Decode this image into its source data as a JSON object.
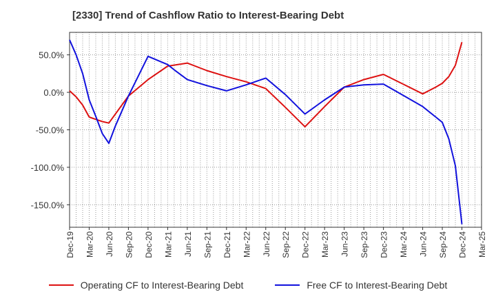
{
  "title": "[2330]  Trend of Cashflow Ratio to Interest-Bearing Debt",
  "legend": {
    "operating": "Operating CF to Interest-Bearing Debt",
    "free": "Free CF to Interest-Bearing Debt"
  },
  "colors": {
    "operating": "#dd1111",
    "free": "#1111dd",
    "grid": "#999999"
  },
  "chart_data": {
    "type": "line",
    "title": "[2330]  Trend of Cashflow Ratio to Interest-Bearing Debt",
    "xlabel": "",
    "ylabel": "",
    "ylim": [
      -180,
      80
    ],
    "yticks": [
      50,
      0,
      -50,
      -100,
      -150
    ],
    "ytick_labels": [
      "50.0%",
      "0.0%",
      "-50.0%",
      "-100.0%",
      "-150.0%"
    ],
    "x_tick_labels": [
      "Dec-19",
      "Mar-20",
      "Jun-20",
      "Sep-20",
      "Dec-20",
      "Mar-21",
      "Jun-21",
      "Sep-21",
      "Dec-21",
      "Mar-22",
      "Jun-22",
      "Sep-22",
      "Dec-22",
      "Mar-23",
      "Jun-23",
      "Sep-23",
      "Dec-23",
      "Mar-24",
      "Jun-24",
      "Sep-24",
      "Dec-24",
      "Mar-25"
    ],
    "grid": true,
    "legend_position": "bottom",
    "series": [
      {
        "name": "Operating CF to Interest-Bearing Debt",
        "color": "#dd1111",
        "points": [
          [
            "Dec-19",
            2
          ],
          [
            "Jan-20",
            -6
          ],
          [
            "Feb-20",
            -17
          ],
          [
            "Mar-20",
            -33
          ],
          [
            "Apr-20",
            -36
          ],
          [
            "May-20",
            -39
          ],
          [
            "Jun-20",
            -41
          ],
          [
            "Sep-20",
            -5
          ],
          [
            "Dec-20",
            17
          ],
          [
            "Mar-21",
            35
          ],
          [
            "Jun-21",
            39
          ],
          [
            "Sep-21",
            29
          ],
          [
            "Dec-21",
            21
          ],
          [
            "Mar-22",
            14
          ],
          [
            "Jun-22",
            5
          ],
          [
            "Sep-22",
            -20
          ],
          [
            "Dec-22",
            -46
          ],
          [
            "Mar-23",
            -19
          ],
          [
            "Jun-23",
            7
          ],
          [
            "Sep-23",
            17
          ],
          [
            "Dec-23",
            24
          ],
          [
            "Mar-24",
            11
          ],
          [
            "Jun-24",
            -2
          ],
          [
            "Aug-24",
            7
          ],
          [
            "Sep-24",
            12
          ],
          [
            "Oct-24",
            21
          ],
          [
            "Nov-24",
            36
          ],
          [
            "Dec-24",
            67
          ]
        ]
      },
      {
        "name": "Free CF to Interest-Bearing Debt",
        "color": "#1111dd",
        "points": [
          [
            "Dec-19",
            70
          ],
          [
            "Jan-20",
            50
          ],
          [
            "Feb-20",
            25
          ],
          [
            "Mar-20",
            -10
          ],
          [
            "Apr-20",
            -32
          ],
          [
            "May-20",
            -55
          ],
          [
            "Jun-20",
            -68
          ],
          [
            "Jul-20",
            -45
          ],
          [
            "Aug-20",
            -25
          ],
          [
            "Sep-20",
            -5
          ],
          [
            "Dec-20",
            48
          ],
          [
            "Mar-21",
            37
          ],
          [
            "Apr-21",
            30
          ],
          [
            "Jun-21",
            17
          ],
          [
            "Sep-21",
            9
          ],
          [
            "Dec-21",
            2
          ],
          [
            "Mar-22",
            10
          ],
          [
            "Jun-22",
            19
          ],
          [
            "Sep-22",
            -3
          ],
          [
            "Dec-22",
            -29
          ],
          [
            "Mar-23",
            -10
          ],
          [
            "Jun-23",
            7
          ],
          [
            "Sep-23",
            10
          ],
          [
            "Dec-23",
            11
          ],
          [
            "Mar-24",
            -4
          ],
          [
            "Jun-24",
            -19
          ],
          [
            "Aug-24",
            -33
          ],
          [
            "Sep-24",
            -40
          ],
          [
            "Oct-24",
            -62
          ],
          [
            "Nov-24",
            -98
          ],
          [
            "Dec-24",
            -176
          ]
        ]
      }
    ]
  }
}
